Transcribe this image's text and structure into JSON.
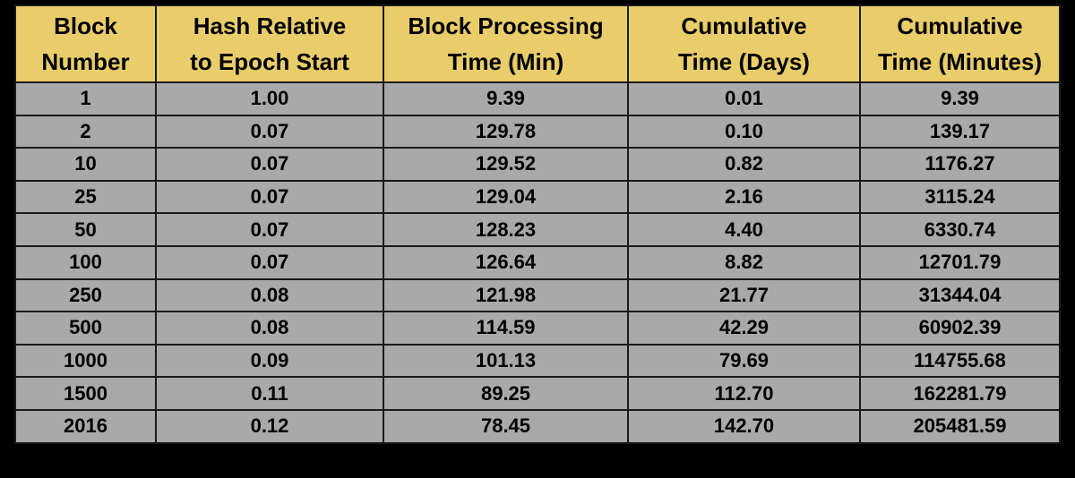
{
  "table": {
    "headers": [
      [
        "Block",
        "Number"
      ],
      [
        "Hash Relative",
        "to Epoch Start"
      ],
      [
        "Block Processing",
        "Time (Min)"
      ],
      [
        "Cumulative",
        "Time (Days)"
      ],
      [
        "Cumulative",
        "Time (Minutes)"
      ]
    ],
    "rows": [
      [
        "1",
        "1.00",
        "9.39",
        "0.01",
        "9.39"
      ],
      [
        "2",
        "0.07",
        "129.78",
        "0.10",
        "139.17"
      ],
      [
        "10",
        "0.07",
        "129.52",
        "0.82",
        "1176.27"
      ],
      [
        "25",
        "0.07",
        "129.04",
        "2.16",
        "3115.24"
      ],
      [
        "50",
        "0.07",
        "128.23",
        "4.40",
        "6330.74"
      ],
      [
        "100",
        "0.07",
        "126.64",
        "8.82",
        "12701.79"
      ],
      [
        "250",
        "0.08",
        "121.98",
        "21.77",
        "31344.04"
      ],
      [
        "500",
        "0.08",
        "114.59",
        "42.29",
        "60902.39"
      ],
      [
        "1000",
        "0.09",
        "101.13",
        "79.69",
        "114755.68"
      ],
      [
        "1500",
        "0.11",
        "89.25",
        "112.70",
        "162281.79"
      ],
      [
        "2016",
        "0.12",
        "78.45",
        "142.70",
        "205481.59"
      ]
    ]
  },
  "colors": {
    "background": "#000000",
    "header_fill": "#e9cd6a",
    "cell_fill": "#a9a9a9",
    "border": "#1a1a1a",
    "text": "#000000"
  }
}
